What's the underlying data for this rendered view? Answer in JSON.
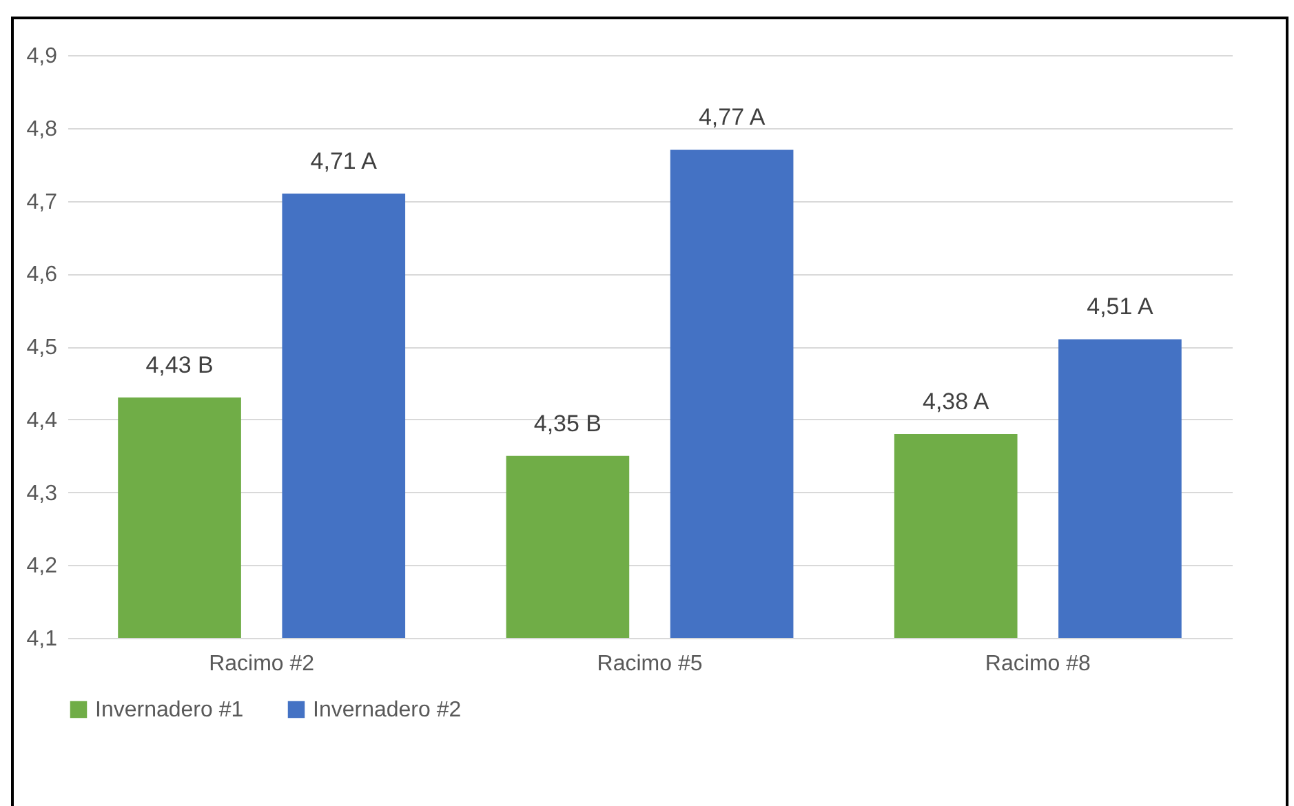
{
  "chart_data": {
    "type": "bar",
    "categories": [
      "Racimo #2",
      "Racimo #5",
      "Racimo #8"
    ],
    "series": [
      {
        "name": "Invernadero #1",
        "color": "#70ad47",
        "values": [
          4.43,
          4.35,
          4.38
        ],
        "value_labels": [
          "4,43 B",
          "4,35 B",
          "4,38 A"
        ]
      },
      {
        "name": "Invernadero #2",
        "color": "#4472c4",
        "values": [
          4.71,
          4.77,
          4.51
        ],
        "value_labels": [
          "4,71 A",
          "4,77 A",
          "4,51 A"
        ]
      }
    ],
    "ylim": [
      4.1,
      4.9
    ],
    "yticks": [
      {
        "value": 4.1,
        "label": "4,1"
      },
      {
        "value": 4.2,
        "label": "4,2"
      },
      {
        "value": 4.3,
        "label": "4,3"
      },
      {
        "value": 4.4,
        "label": "4,4"
      },
      {
        "value": 4.5,
        "label": "4,5"
      },
      {
        "value": 4.6,
        "label": "4,6"
      },
      {
        "value": 4.7,
        "label": "4,7"
      },
      {
        "value": 4.8,
        "label": "4,8"
      },
      {
        "value": 4.9,
        "label": "4,9"
      }
    ],
    "grid": "y",
    "legend": "bottom"
  }
}
